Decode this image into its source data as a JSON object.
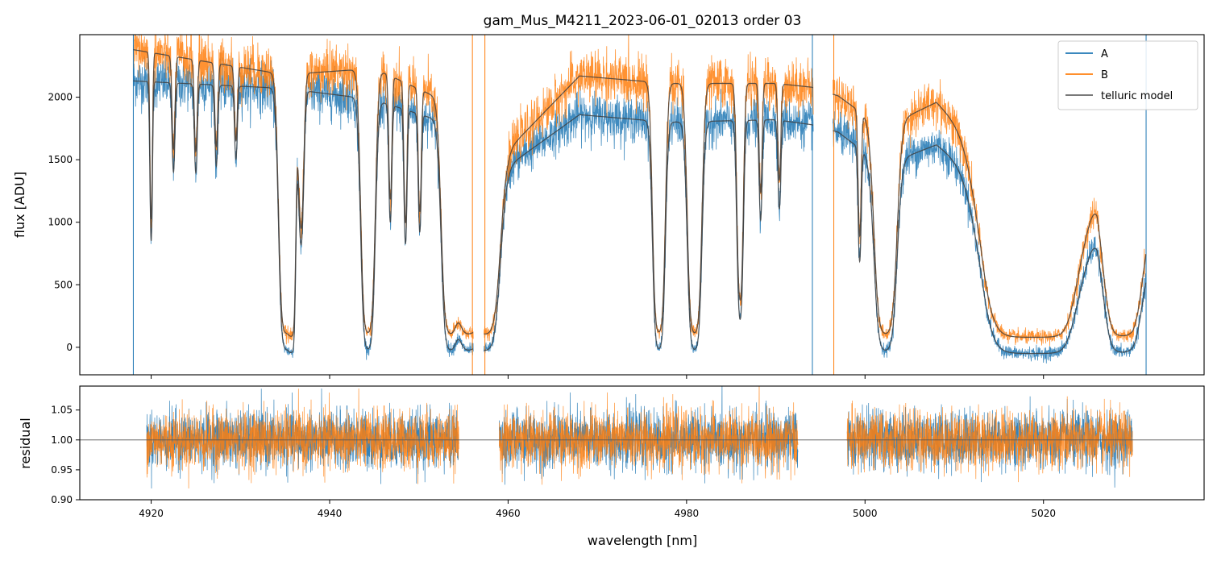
{
  "chart_data": [
    {
      "type": "line",
      "title": "gam_Mus_M4211_2023-06-01_02013  order 03",
      "xlabel": "",
      "ylabel": "flux [ADU]",
      "xlim": [
        4912,
        5038
      ],
      "ylim": [
        -220,
        2500
      ],
      "x_ticks": [
        4920,
        4940,
        4960,
        4980,
        5000,
        5020
      ],
      "y_ticks": [
        0,
        500,
        1000,
        1500,
        2000
      ],
      "y_tick_labels": [
        "0",
        "500",
        "1000",
        "1500",
        "2000"
      ],
      "legend": {
        "position": "top-right",
        "entries": [
          "A",
          "B",
          "telluric model"
        ]
      },
      "series": [
        {
          "name": "A",
          "color": "#1f77b4",
          "continuum_nodes": [
            [
              4918,
              2130
            ],
            [
              4935,
              2070
            ],
            [
              4945,
              1980
            ],
            [
              4955,
              1750
            ],
            [
              4960,
              1450
            ],
            [
              4968,
              1860
            ],
            [
              4978,
              1800
            ],
            [
              4990,
              1820
            ],
            [
              4994,
              1780
            ],
            [
              4997,
              1720
            ],
            [
              5002,
              1450
            ],
            [
              5008,
              1620
            ],
            [
              5013,
              1350
            ],
            [
              5016,
              600
            ],
            [
              5018,
              120
            ],
            [
              5022,
              300
            ],
            [
              5026,
              930
            ],
            [
              5030,
              400
            ],
            [
              5031.5,
              650
            ]
          ]
        },
        {
          "name": "B",
          "color": "#ff7f0e",
          "continuum_nodes": [
            [
              4918,
              2380
            ],
            [
              4935,
              2180
            ],
            [
              4945,
              2230
            ],
            [
              4955,
              1900
            ],
            [
              4960,
              1580
            ],
            [
              4968,
              2170
            ],
            [
              4978,
              2110
            ],
            [
              4990,
              2110
            ],
            [
              4994,
              2080
            ],
            [
              4997,
              2010
            ],
            [
              5002,
              1750
            ],
            [
              5008,
              1960
            ],
            [
              5013,
              1600
            ],
            [
              5016,
              800
            ],
            [
              5018,
              250
            ],
            [
              5022,
              450
            ],
            [
              5026,
              1230
            ],
            [
              5030,
              550
            ],
            [
              5031.5,
              900
            ]
          ]
        },
        {
          "name": "telluric model",
          "color": "#404040",
          "absorption_lines": [
            {
              "center": 4920.0,
              "depth": 0.22,
              "width": 0.12
            },
            {
              "center": 4922.5,
              "depth": 0.1,
              "width": 0.15
            },
            {
              "center": 4925.0,
              "depth": 0.1,
              "width": 0.15
            },
            {
              "center": 4927.3,
              "depth": 0.09,
              "width": 0.15
            },
            {
              "center": 4929.5,
              "depth": 0.08,
              "width": 0.15
            },
            {
              "center": 4935.1,
              "depth": 1.0,
              "width": 0.45
            },
            {
              "center": 4935.75,
              "depth": 1.0,
              "width": 0.25
            },
            {
              "center": 4936.8,
              "depth": 0.22,
              "width": 0.25
            },
            {
              "center": 4944.3,
              "depth": 1.0,
              "width": 0.45
            },
            {
              "center": 4946.8,
              "depth": 0.16,
              "width": 0.15
            },
            {
              "center": 4948.5,
              "depth": 0.2,
              "width": 0.15
            },
            {
              "center": 4950.1,
              "depth": 0.17,
              "width": 0.15
            },
            {
              "center": 4953.5,
              "depth": 0.96,
              "width": 0.55
            },
            {
              "center": 4955.4,
              "depth": 0.96,
              "width": 0.8
            },
            {
              "center": 4957.5,
              "depth": 1.0,
              "width": 0.9
            },
            {
              "center": 4976.9,
              "depth": 0.96,
              "width": 0.4
            },
            {
              "center": 4980.9,
              "depth": 1.0,
              "width": 0.45
            },
            {
              "center": 4986.0,
              "depth": 0.48,
              "width": 0.25
            },
            {
              "center": 4988.3,
              "depth": 0.14,
              "width": 0.15
            },
            {
              "center": 4990.4,
              "depth": 0.12,
              "width": 0.15
            },
            {
              "center": 4999.4,
              "depth": 0.2,
              "width": 0.15
            },
            {
              "center": 5002.3,
              "depth": 1.0,
              "width": 0.7
            },
            {
              "center": 5017.0,
              "depth": 1.0,
              "width": 2.2
            },
            {
              "center": 5020.0,
              "depth": 1.0,
              "width": 1.8
            },
            {
              "center": 5028.8,
              "depth": 1.0,
              "width": 1.1
            }
          ]
        }
      ],
      "gaps": [
        [
          4956.1,
          4957.3
        ],
        [
          4994.2,
          4996.4
        ]
      ],
      "segment_ranges": [
        [
          4918,
          4956.1
        ],
        [
          4957.3,
          4994.2
        ],
        [
          4996.4,
          5031.5
        ]
      ]
    },
    {
      "type": "line",
      "title": "",
      "xlabel": "wavelength [nm]",
      "ylabel": "residual",
      "xlim": [
        4912,
        5038
      ],
      "ylim": [
        0.9,
        1.09
      ],
      "x_ticks": [
        4920,
        4940,
        4960,
        4980,
        5000,
        5020
      ],
      "x_tick_labels": [
        "4920",
        "4940",
        "4960",
        "4980",
        "5000",
        "5020"
      ],
      "y_ticks": [
        0.9,
        0.95,
        1.0,
        1.05
      ],
      "y_tick_labels": [
        "0.90",
        "0.95",
        "1.00",
        "1.05"
      ],
      "reference_line": 1.0,
      "segments": [
        [
          4919.5,
          4954.5
        ],
        [
          4959,
          4992.5
        ],
        [
          4998,
          5030
        ]
      ],
      "noise_sigma": 0.024,
      "series": [
        {
          "name": "A",
          "color": "#1f77b4"
        },
        {
          "name": "B",
          "color": "#ff7f0e"
        }
      ]
    }
  ]
}
